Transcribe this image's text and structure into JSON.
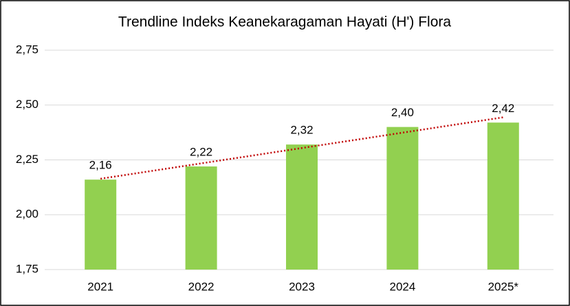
{
  "chart_data": {
    "type": "bar",
    "title": "Trendline Indeks Keanekaragaman Hayati (H') Flora",
    "categories": [
      "2021",
      "2022",
      "2023",
      "2024",
      "2025*"
    ],
    "values": [
      2.16,
      2.22,
      2.32,
      2.4,
      2.42
    ],
    "value_labels": [
      "2,16",
      "2,22",
      "2,32",
      "2,40",
      "2,42"
    ],
    "color": "#92d050",
    "ylim": [
      1.75,
      2.75
    ],
    "yticks": [
      {
        "value": 1.75,
        "label": "1,75"
      },
      {
        "value": 2.0,
        "label": "2,00"
      },
      {
        "value": 2.25,
        "label": "2,25"
      },
      {
        "value": 2.5,
        "label": "2,50"
      },
      {
        "value": 2.75,
        "label": "2,75"
      }
    ],
    "grid": true,
    "trendline": {
      "type": "linear",
      "color": "#c00000"
    }
  }
}
